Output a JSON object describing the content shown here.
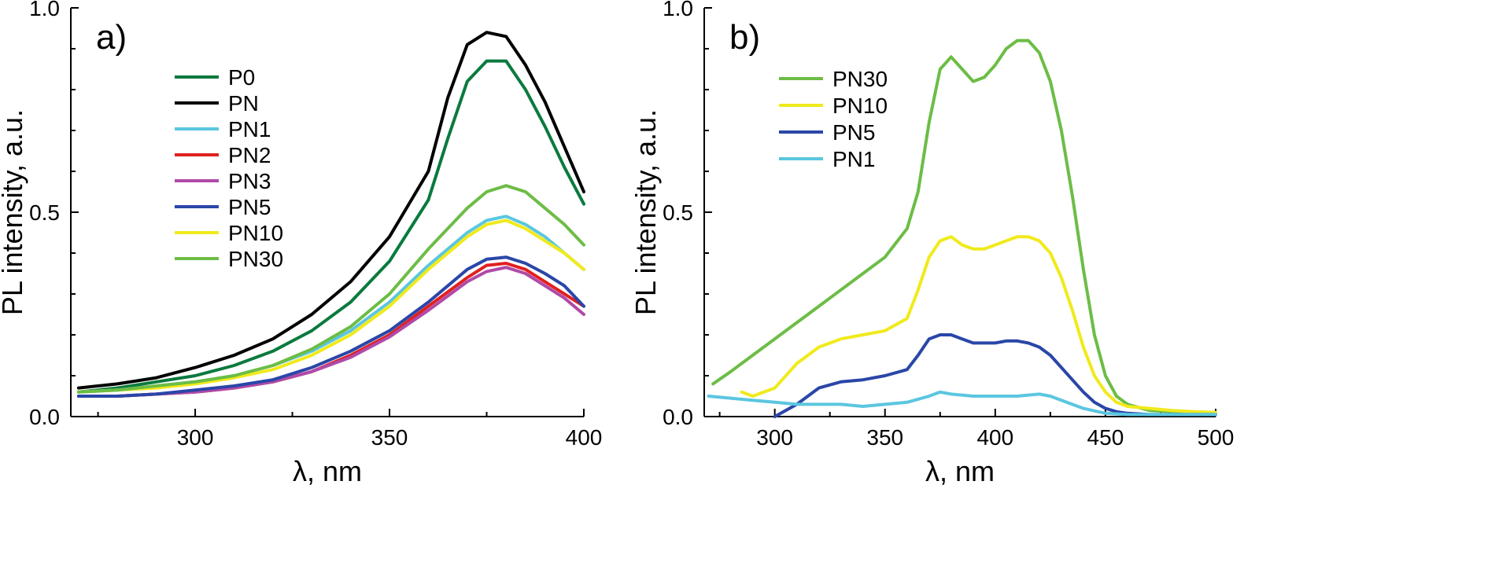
{
  "chart_data": [
    {
      "panel_label": "a)",
      "type": "line",
      "xlabel": "λ, nm",
      "ylabel": "PL intensity, a.u.",
      "xlim": [
        268,
        400
      ],
      "ylim": [
        0,
        1.0
      ],
      "xticks": [
        300,
        350,
        400
      ],
      "yticks": [
        "0.0",
        "0.5",
        "1.0"
      ],
      "legend_position": "upper-left",
      "series": [
        {
          "name": "P0",
          "color": "#0b7a3e",
          "x": [
            270,
            280,
            290,
            300,
            310,
            320,
            330,
            340,
            350,
            360,
            365,
            370,
            375,
            380,
            385,
            390,
            395,
            400
          ],
          "y": [
            0.06,
            0.07,
            0.085,
            0.1,
            0.125,
            0.16,
            0.21,
            0.28,
            0.38,
            0.53,
            0.68,
            0.82,
            0.87,
            0.87,
            0.8,
            0.71,
            0.61,
            0.52
          ]
        },
        {
          "name": "PN",
          "color": "#000000",
          "x": [
            270,
            280,
            290,
            300,
            310,
            320,
            330,
            340,
            350,
            360,
            365,
            370,
            375,
            380,
            385,
            390,
            395,
            400
          ],
          "y": [
            0.07,
            0.08,
            0.095,
            0.12,
            0.15,
            0.19,
            0.25,
            0.33,
            0.44,
            0.6,
            0.78,
            0.91,
            0.94,
            0.93,
            0.86,
            0.77,
            0.66,
            0.55
          ]
        },
        {
          "name": "PN1",
          "color": "#5bc6e0",
          "x": [
            270,
            280,
            290,
            300,
            310,
            320,
            330,
            340,
            350,
            360,
            370,
            375,
            380,
            385,
            390,
            395,
            400
          ],
          "y": [
            0.06,
            0.065,
            0.075,
            0.085,
            0.1,
            0.125,
            0.16,
            0.21,
            0.28,
            0.37,
            0.45,
            0.48,
            0.49,
            0.47,
            0.44,
            0.4,
            0.36
          ]
        },
        {
          "name": "PN2",
          "color": "#e02020",
          "x": [
            270,
            280,
            290,
            300,
            310,
            320,
            330,
            340,
            350,
            360,
            370,
            375,
            380,
            385,
            390,
            395,
            400
          ],
          "y": [
            0.05,
            0.05,
            0.055,
            0.06,
            0.07,
            0.085,
            0.11,
            0.15,
            0.2,
            0.27,
            0.34,
            0.37,
            0.375,
            0.36,
            0.33,
            0.3,
            0.27
          ]
        },
        {
          "name": "PN3",
          "color": "#b04aa8",
          "x": [
            270,
            280,
            290,
            300,
            310,
            320,
            330,
            340,
            350,
            360,
            370,
            375,
            380,
            385,
            390,
            395,
            400
          ],
          "y": [
            0.05,
            0.05,
            0.055,
            0.06,
            0.07,
            0.085,
            0.11,
            0.145,
            0.195,
            0.26,
            0.33,
            0.355,
            0.365,
            0.35,
            0.32,
            0.29,
            0.25
          ]
        },
        {
          "name": "PN5",
          "color": "#2a46a8",
          "x": [
            270,
            280,
            290,
            300,
            310,
            320,
            330,
            340,
            350,
            360,
            370,
            375,
            380,
            385,
            390,
            395,
            400
          ],
          "y": [
            0.05,
            0.05,
            0.055,
            0.065,
            0.075,
            0.09,
            0.12,
            0.16,
            0.21,
            0.28,
            0.36,
            0.385,
            0.39,
            0.375,
            0.35,
            0.32,
            0.27
          ]
        },
        {
          "name": "PN10",
          "color": "#f0ea1c",
          "x": [
            270,
            280,
            290,
            300,
            310,
            320,
            330,
            340,
            350,
            360,
            370,
            375,
            380,
            385,
            390,
            395,
            400
          ],
          "y": [
            0.06,
            0.065,
            0.07,
            0.08,
            0.095,
            0.115,
            0.15,
            0.2,
            0.27,
            0.36,
            0.44,
            0.47,
            0.48,
            0.46,
            0.43,
            0.4,
            0.36
          ]
        },
        {
          "name": "PN30",
          "color": "#6cbd45",
          "x": [
            270,
            280,
            290,
            300,
            310,
            320,
            330,
            340,
            350,
            360,
            370,
            375,
            380,
            385,
            390,
            395,
            400
          ],
          "y": [
            0.06,
            0.065,
            0.075,
            0.085,
            0.1,
            0.125,
            0.165,
            0.22,
            0.3,
            0.41,
            0.51,
            0.55,
            0.565,
            0.55,
            0.51,
            0.47,
            0.42
          ]
        }
      ]
    },
    {
      "panel_label": "b)",
      "type": "line",
      "xlabel": "λ, nm",
      "ylabel": "PL intensity, a.u.",
      "xlim": [
        268,
        500
      ],
      "ylim": [
        0,
        1.0
      ],
      "xticks": [
        300,
        350,
        400,
        450,
        500
      ],
      "yticks": [
        "0.0",
        "0.5",
        "1.0"
      ],
      "legend_position": "upper-left",
      "series": [
        {
          "name": "PN30",
          "color": "#6cbd45",
          "x": [
            272,
            280,
            290,
            300,
            310,
            320,
            330,
            340,
            350,
            360,
            365,
            370,
            375,
            380,
            385,
            390,
            395,
            400,
            405,
            410,
            415,
            420,
            425,
            430,
            435,
            440,
            445,
            450,
            455,
            460,
            470,
            480,
            490,
            500
          ],
          "y": [
            0.08,
            0.11,
            0.15,
            0.19,
            0.23,
            0.27,
            0.31,
            0.35,
            0.39,
            0.46,
            0.55,
            0.72,
            0.85,
            0.88,
            0.85,
            0.82,
            0.83,
            0.86,
            0.9,
            0.92,
            0.92,
            0.89,
            0.82,
            0.7,
            0.54,
            0.36,
            0.2,
            0.1,
            0.05,
            0.03,
            0.015,
            0.012,
            0.01,
            0.01
          ]
        },
        {
          "name": "PN10",
          "color": "#f0ea1c",
          "x": [
            285,
            290,
            300,
            310,
            320,
            330,
            340,
            350,
            360,
            365,
            370,
            375,
            380,
            385,
            390,
            395,
            400,
            405,
            410,
            415,
            420,
            425,
            430,
            435,
            440,
            445,
            450,
            455,
            460,
            470,
            480,
            490,
            500
          ],
          "y": [
            0.06,
            0.05,
            0.07,
            0.13,
            0.17,
            0.19,
            0.2,
            0.21,
            0.24,
            0.31,
            0.39,
            0.43,
            0.44,
            0.42,
            0.41,
            0.41,
            0.42,
            0.43,
            0.44,
            0.44,
            0.43,
            0.4,
            0.34,
            0.26,
            0.17,
            0.1,
            0.06,
            0.035,
            0.025,
            0.02,
            0.015,
            0.012,
            0.01
          ]
        },
        {
          "name": "PN5",
          "color": "#2a46a8",
          "x": [
            300,
            310,
            320,
            330,
            340,
            350,
            360,
            365,
            370,
            375,
            380,
            385,
            390,
            395,
            400,
            405,
            410,
            415,
            420,
            425,
            430,
            435,
            440,
            445,
            450,
            455,
            460,
            470,
            480,
            490,
            500
          ],
          "y": [
            0.0,
            0.03,
            0.07,
            0.085,
            0.09,
            0.1,
            0.115,
            0.15,
            0.19,
            0.2,
            0.2,
            0.19,
            0.18,
            0.18,
            0.18,
            0.185,
            0.185,
            0.18,
            0.17,
            0.15,
            0.12,
            0.09,
            0.06,
            0.035,
            0.02,
            0.012,
            0.008,
            0.005,
            0.005,
            0.005,
            0.005
          ]
        },
        {
          "name": "PN1",
          "color": "#5bc6e0",
          "x": [
            270,
            280,
            290,
            300,
            310,
            320,
            330,
            340,
            350,
            360,
            370,
            375,
            380,
            390,
            400,
            410,
            420,
            425,
            430,
            440,
            450,
            460,
            470,
            480,
            490,
            500
          ],
          "y": [
            0.05,
            0.045,
            0.04,
            0.035,
            0.03,
            0.03,
            0.03,
            0.025,
            0.03,
            0.035,
            0.05,
            0.06,
            0.055,
            0.05,
            0.05,
            0.05,
            0.055,
            0.05,
            0.04,
            0.02,
            0.008,
            0.005,
            0.005,
            0.005,
            0.005,
            0.005
          ]
        }
      ]
    }
  ]
}
